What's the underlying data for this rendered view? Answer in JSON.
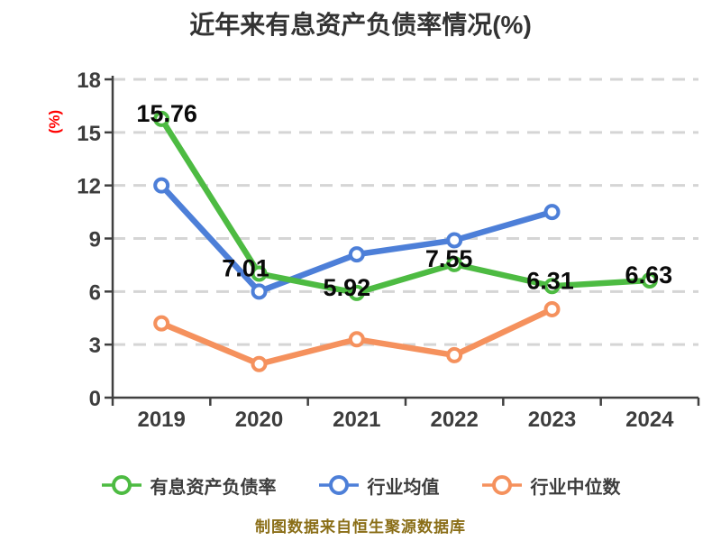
{
  "title": "近年来有息资产负债率情况(%)",
  "ylabel": "(%)",
  "ylabel_color": "#ff0000",
  "footer": "制图数据来自恒生聚源数据库",
  "footer_color": "#8a6e17",
  "chart_data": {
    "type": "line",
    "title": "近年来有息资产负债率情况(%)",
    "xlabel": "",
    "ylabel": "(%)",
    "categories": [
      "2019",
      "2020",
      "2021",
      "2022",
      "2023",
      "2024"
    ],
    "ylim": [
      0,
      18
    ],
    "yticks": [
      0,
      3,
      6,
      9,
      12,
      15,
      18
    ],
    "grid": "horizontal-dashed",
    "legend_position": "bottom",
    "series": [
      {
        "name": "有息资产负债率",
        "color": "#4dbb42",
        "values": [
          15.76,
          7.01,
          5.92,
          7.55,
          6.31,
          6.63
        ],
        "labels": [
          "15.76",
          "7.01",
          "5.92",
          "7.55",
          "6.31",
          "6.63"
        ]
      },
      {
        "name": "行业均值",
        "color": "#4d7fd8",
        "values": [
          12.0,
          6.0,
          8.1,
          8.9,
          10.5
        ]
      },
      {
        "name": "行业中位数",
        "color": "#f5915d",
        "values": [
          4.2,
          1.9,
          3.3,
          2.4,
          5.0
        ]
      }
    ]
  }
}
